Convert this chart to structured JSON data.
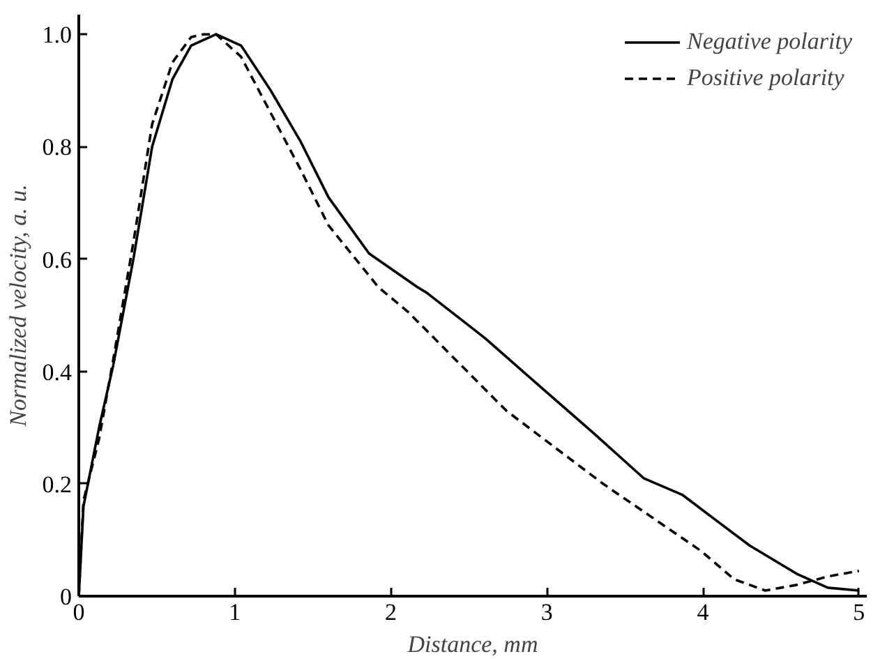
{
  "chart_data": {
    "type": "line",
    "xlabel": "Distance, mm",
    "ylabel": "Normalized velocity, a. u.",
    "xlim": [
      0,
      5.05
    ],
    "ylim": [
      0,
      1.035
    ],
    "xticks": [
      0,
      1,
      2,
      3,
      4,
      5
    ],
    "yticks": [
      0,
      {
        "value": 0.2,
        "label": "0.2"
      },
      {
        "value": 0.4,
        "label": "0.4"
      },
      {
        "value": 0.6,
        "label": "0.6"
      },
      {
        "value": 0.8,
        "label": "0.8"
      },
      {
        "value": 1.0,
        "label": "1.0"
      }
    ],
    "grid": false,
    "legend": "top right",
    "marker": "none",
    "series": [
      {
        "name": "Negative polarity",
        "color": "#000000",
        "line_style": "solid",
        "x": [
          0,
          0.03,
          0.13,
          0.22,
          0.35,
          0.47,
          0.6,
          0.72,
          0.88,
          1.04,
          1.23,
          1.42,
          1.6,
          1.86,
          2.17,
          2.23,
          2.6,
          2.99,
          3.3,
          3.62,
          3.87,
          4.06,
          4.3,
          4.6,
          4.8,
          5.0
        ],
        "values": [
          0,
          0.16,
          0.3,
          0.41,
          0.6,
          0.8,
          0.92,
          0.98,
          1.0,
          0.98,
          0.9,
          0.81,
          0.71,
          0.61,
          0.55,
          0.54,
          0.46,
          0.365,
          0.29,
          0.21,
          0.18,
          0.14,
          0.09,
          0.04,
          0.015,
          0.01
        ]
      },
      {
        "name": "Positive polarity",
        "color": "#000000",
        "line_style": "dashed",
        "x": [
          0,
          0.03,
          0.13,
          0.22,
          0.35,
          0.47,
          0.6,
          0.72,
          0.8,
          0.88,
          1.04,
          1.23,
          1.42,
          1.6,
          1.92,
          2.11,
          2.74,
          3.36,
          3.99,
          4.2,
          4.4,
          4.6,
          4.8,
          5.0
        ],
        "values": [
          0,
          0.17,
          0.28,
          0.42,
          0.63,
          0.84,
          0.95,
          0.995,
          1.0,
          1.0,
          0.96,
          0.86,
          0.76,
          0.66,
          0.55,
          0.506,
          0.33,
          0.2,
          0.08,
          0.03,
          0.01,
          0.02,
          0.035,
          0.045
        ]
      }
    ]
  }
}
